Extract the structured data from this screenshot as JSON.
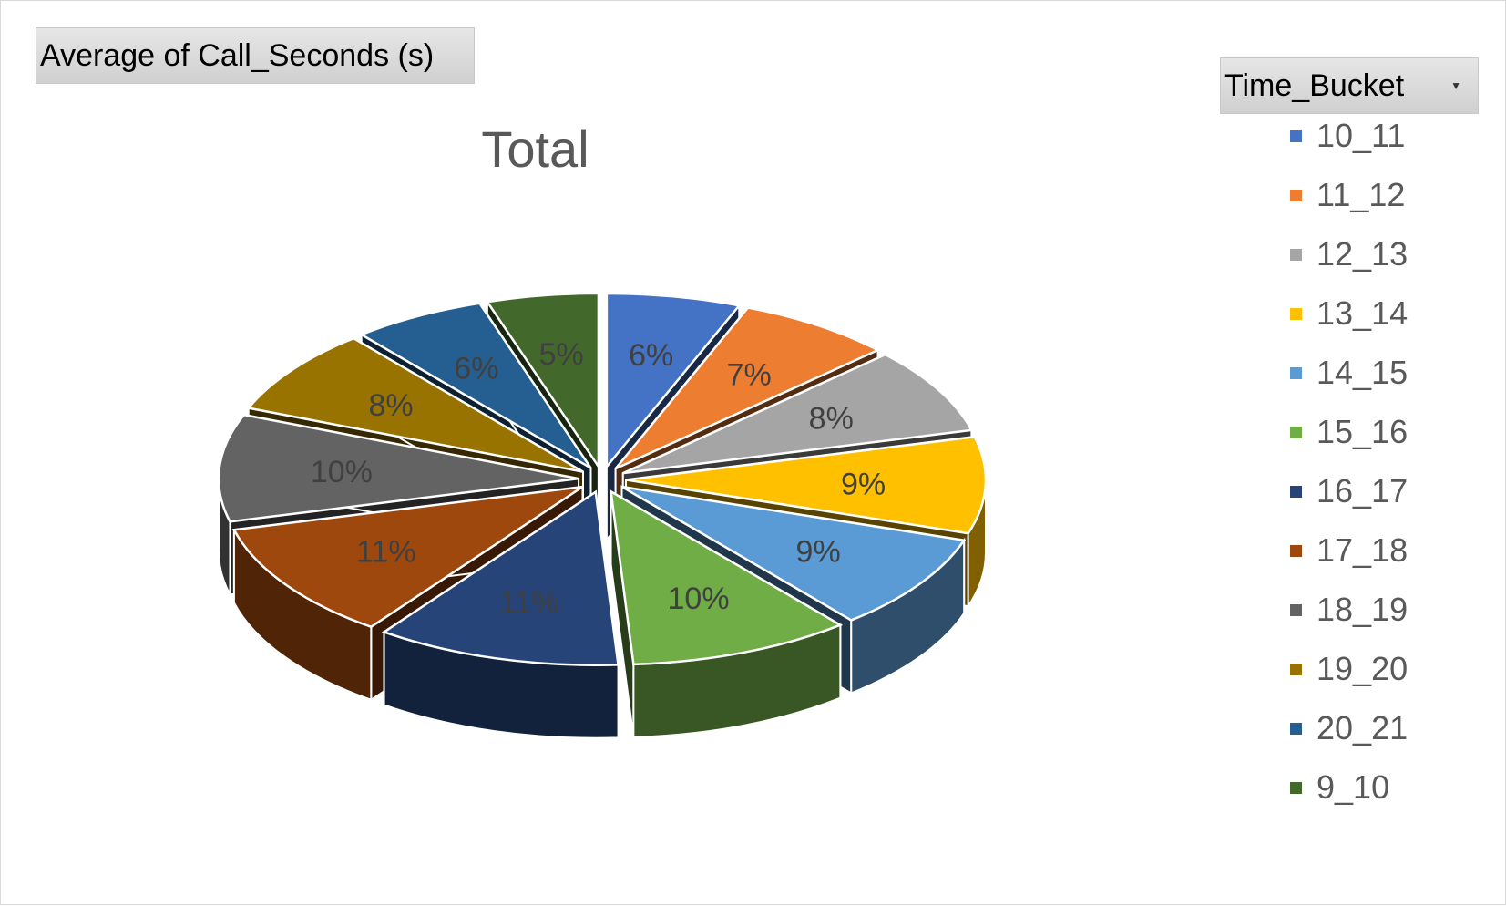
{
  "value_field": {
    "label": "Average  of Call_Seconds  (s)"
  },
  "legend_field": {
    "label": "Time_Bucket",
    "dropdown_icon": "dropdown-arrow-icon"
  },
  "chart_data": {
    "type": "pie",
    "style": "3d-exploded",
    "title": "Total",
    "legend_placement": "right",
    "slices": [
      {
        "name": "10_11",
        "label": "6%",
        "value": 6,
        "color": "#4472c4"
      },
      {
        "name": "11_12",
        "label": "7%",
        "value": 7,
        "color": "#ed7d31"
      },
      {
        "name": "12_13",
        "label": "8%",
        "value": 8,
        "color": "#a5a5a5"
      },
      {
        "name": "13_14",
        "label": "9%",
        "value": 9,
        "color": "#ffc000"
      },
      {
        "name": "14_15",
        "label": "9%",
        "value": 9,
        "color": "#5b9bd5"
      },
      {
        "name": "15_16",
        "label": "10%",
        "value": 10,
        "color": "#70ad47"
      },
      {
        "name": "16_17",
        "label": "11%",
        "value": 11,
        "color": "#264478"
      },
      {
        "name": "17_18",
        "label": "11%",
        "value": 11,
        "color": "#9e480e"
      },
      {
        "name": "18_19",
        "label": "10%",
        "value": 10,
        "color": "#636363"
      },
      {
        "name": "19_20",
        "label": "8%",
        "value": 8,
        "color": "#997300"
      },
      {
        "name": "20_21",
        "label": "6%",
        "value": 6,
        "color": "#255e91"
      },
      {
        "name": "9_10",
        "label": "5%",
        "value": 5,
        "color": "#43682b"
      }
    ]
  }
}
